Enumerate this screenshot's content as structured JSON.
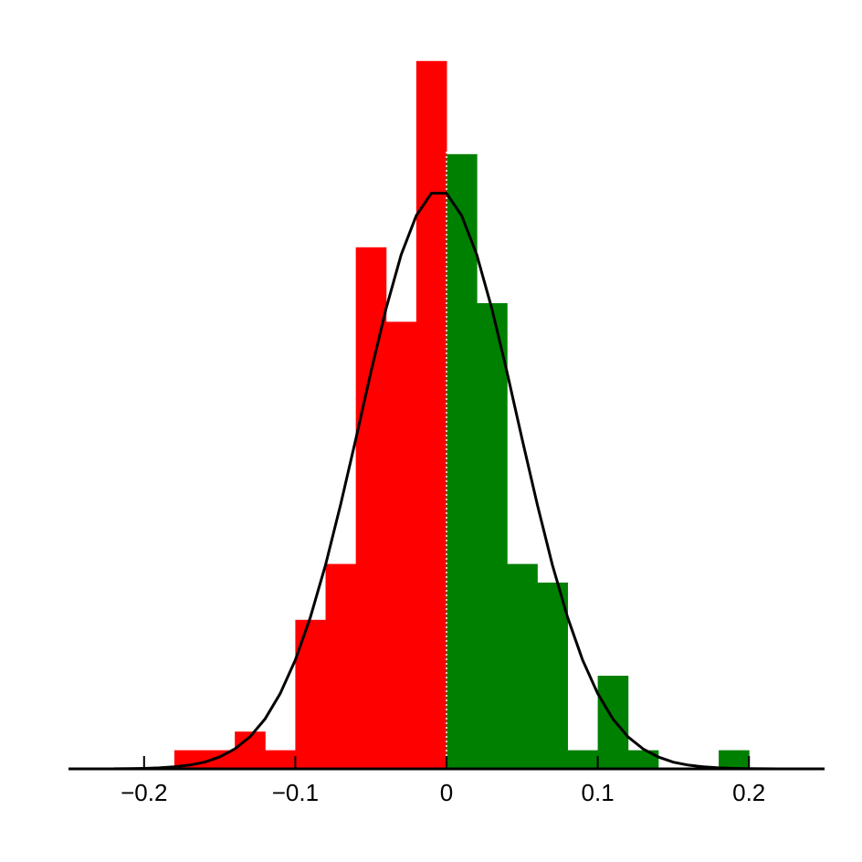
{
  "chart_data": {
    "type": "histogram",
    "bins": [
      -0.18,
      -0.16,
      -0.14,
      -0.12,
      -0.1,
      -0.08,
      -0.06,
      -0.04,
      -0.02,
      0,
      0.02,
      0.04,
      0.06,
      0.08,
      0.1,
      0.12,
      0.14,
      0.16,
      0.18,
      0.2
    ],
    "values": [
      1,
      1,
      2,
      1,
      8,
      11,
      28,
      24,
      38,
      33,
      25,
      11,
      10,
      1,
      5,
      1,
      0,
      0,
      1
    ],
    "negative_color": "#ff0000",
    "positive_color": "#008000",
    "reference_line": 0,
    "curve": {
      "color": "#000000",
      "x": [
        -0.22,
        -0.21,
        -0.2,
        -0.19,
        -0.18,
        -0.17,
        -0.16,
        -0.15,
        -0.14,
        -0.13,
        -0.12,
        -0.11,
        -0.1,
        -0.09,
        -0.08,
        -0.07,
        -0.06,
        -0.05,
        -0.04,
        -0.03,
        -0.02,
        -0.01,
        0,
        0.01,
        0.02,
        0.03,
        0.04,
        0.05,
        0.06,
        0.07,
        0.08,
        0.09,
        0.1,
        0.11,
        0.12,
        0.13,
        0.14,
        0.15,
        0.16,
        0.17,
        0.18,
        0.19,
        0.2,
        0.21,
        0.22
      ],
      "values": [
        0.006,
        0.013,
        0.027,
        0.055,
        0.108,
        0.2,
        0.36,
        0.64,
        1.07,
        1.72,
        2.68,
        4.04,
        5.84,
        8.15,
        10.95,
        14.2,
        17.7,
        21.3,
        24.7,
        27.6,
        29.7,
        30.9,
        30.9,
        29.7,
        27.6,
        24.7,
        21.3,
        17.7,
        14.2,
        10.95,
        8.15,
        5.84,
        4.04,
        2.68,
        1.72,
        1.07,
        0.64,
        0.36,
        0.2,
        0.108,
        0.055,
        0.027,
        0.013,
        0.006,
        0.003
      ]
    },
    "xlim": [
      -0.25,
      0.25
    ],
    "xticks": [
      {
        "value": -0.2,
        "label": "−0.2"
      },
      {
        "value": -0.1,
        "label": "−0.1"
      },
      0,
      0.1,
      0.2
    ],
    "ylim": [
      0,
      40
    ]
  }
}
